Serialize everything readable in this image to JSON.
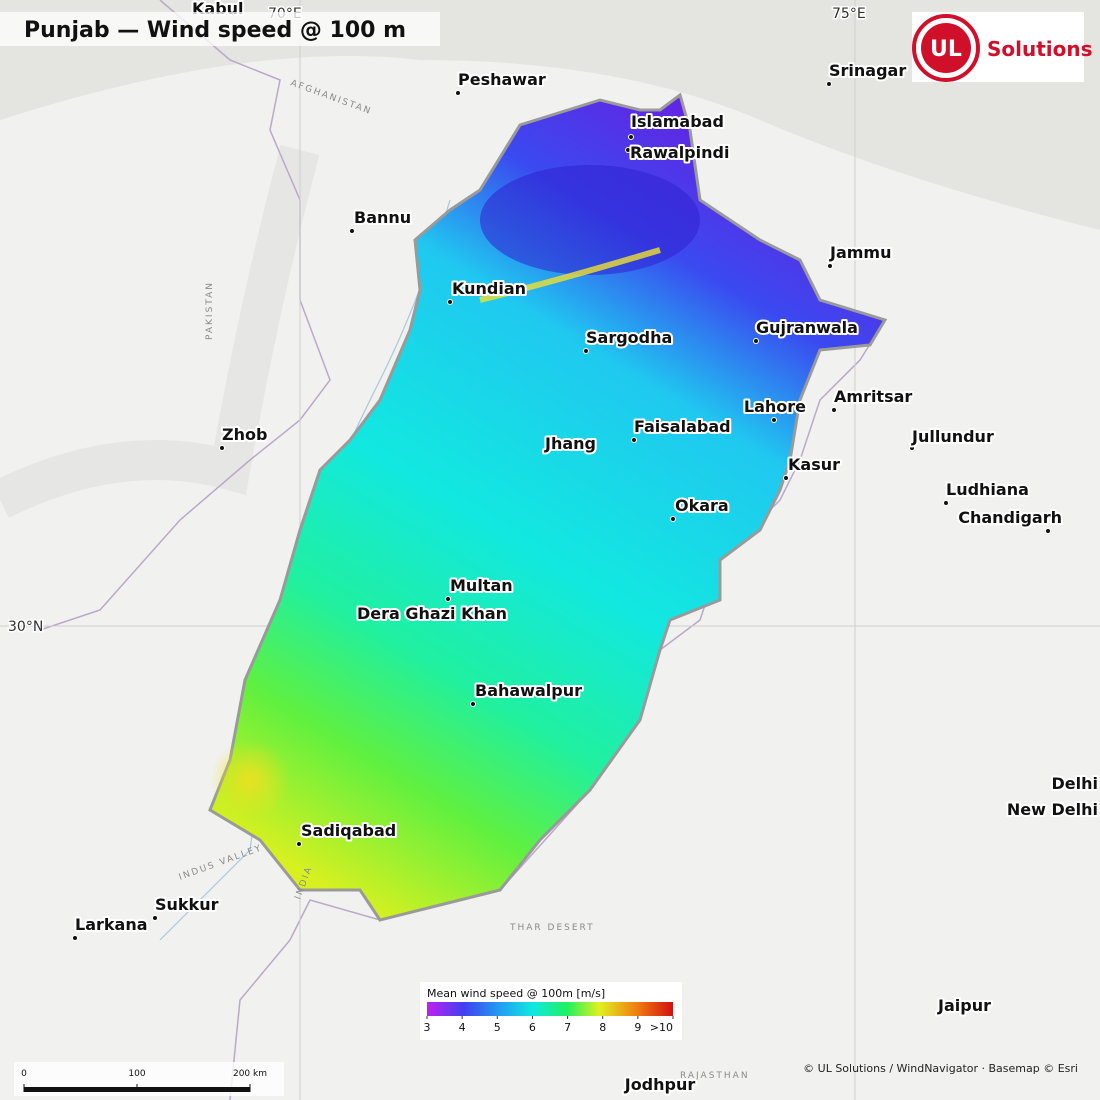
{
  "header": {
    "title": "Punjab — Wind speed @ 100 m"
  },
  "logo": {
    "mark": "UL",
    "text": "Solutions"
  },
  "graticule": [
    "70°E",
    "75°E",
    "30°N"
  ],
  "cities": [
    "Kabul",
    "Peshawar",
    "Islamabad",
    "Rawalpindi",
    "Srinagar",
    "Bannu",
    "Jammu",
    "Kundian",
    "Sargodha",
    "Gujranwala",
    "Amritsar",
    "Lahore",
    "Zhob",
    "Jhang",
    "Faisalabad",
    "Jullundur",
    "Kasur",
    "Ludhiana",
    "Chandigarh",
    "Okara",
    "Multan",
    "Dera Ghazi Khan",
    "Bahawalpur",
    "Delhi",
    "New Delhi",
    "Sadiqabad",
    "Sukkur",
    "Larkana",
    "Jaipur",
    "Jodhpur"
  ],
  "basemap_labels": [
    "AFGHANISTAN",
    "PAKISTAN",
    "INDIA",
    "THAR DESERT",
    "INDUS VALLEY",
    "RAJASTHAN"
  ],
  "legend": {
    "title": "Mean wind speed @ 100m  [m/s]",
    "ticks": [
      3,
      4,
      5,
      6,
      7,
      8,
      9,
      {
        "value": 10,
        "label": ">10"
      }
    ]
  },
  "scale_bar": {
    "ticks": [
      {
        "value": 0,
        "label": "0"
      },
      {
        "value": 100,
        "label": "100"
      },
      {
        "value": 200,
        "label": "200 km"
      }
    ]
  },
  "attribution": "© UL Solutions / WindNavigator · Basemap © Esri"
}
